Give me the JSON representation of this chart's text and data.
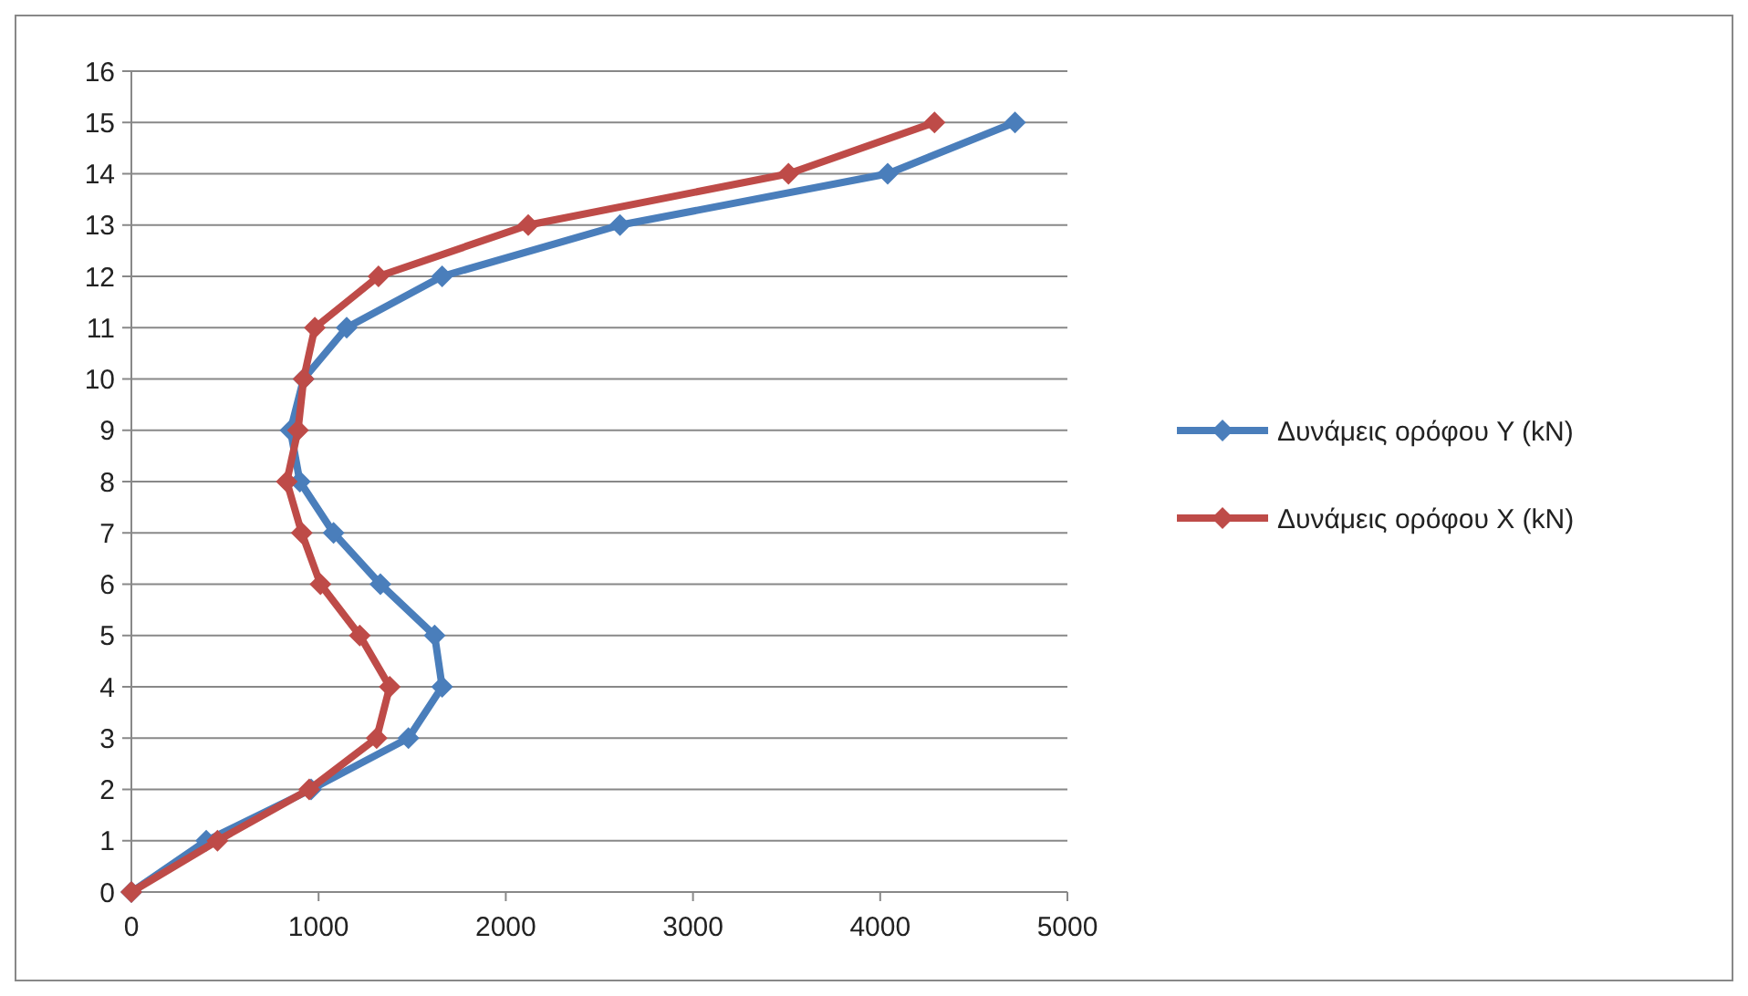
{
  "chart_data": {
    "type": "line",
    "series": [
      {
        "name": "Δυνάμεις ορόφου Y (kN)",
        "color": "#4a7ebb",
        "x": [
          0,
          400,
          960,
          1480,
          1660,
          1620,
          1330,
          1080,
          900,
          850,
          920,
          1150,
          1660,
          2610,
          4040,
          4720
        ],
        "values": [
          0,
          1,
          2,
          3,
          4,
          5,
          6,
          7,
          8,
          9,
          10,
          11,
          12,
          13,
          14,
          15
        ]
      },
      {
        "name": "Δυνάμεις ορόφου X (kN)",
        "color": "#be4b48",
        "x": [
          0,
          460,
          950,
          1310,
          1380,
          1220,
          1010,
          910,
          830,
          890,
          920,
          980,
          1320,
          2120,
          3510,
          4290
        ],
        "values": [
          0,
          1,
          2,
          3,
          4,
          5,
          6,
          7,
          8,
          9,
          10,
          11,
          12,
          13,
          14,
          15
        ]
      }
    ],
    "xlim": [
      0,
      5000
    ],
    "xticks": [
      0,
      1000,
      2000,
      3000,
      4000,
      5000
    ],
    "ylim": [
      0,
      16
    ],
    "yticks": [
      0,
      1,
      2,
      3,
      4,
      5,
      6,
      7,
      8,
      9,
      10,
      11,
      12,
      13,
      14,
      15,
      16
    ],
    "grid": "y",
    "legend": "right",
    "marker": "diamond",
    "line_style": "solid"
  }
}
